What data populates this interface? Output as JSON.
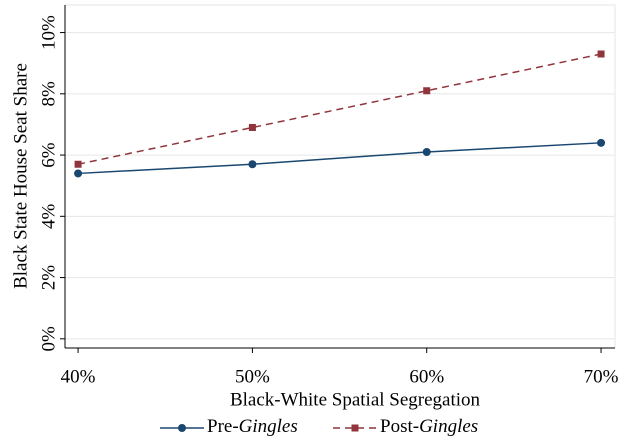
{
  "chart_data": {
    "type": "line",
    "x_label": "Black-White Spatial Segregation",
    "y_label": "Black State House Seat Share",
    "x": [
      40,
      50,
      60,
      70
    ],
    "series": [
      {
        "name": "Pre-Gingles",
        "color": "#1a476f",
        "dash": false,
        "marker": "circle",
        "values": [
          5.4,
          5.7,
          6.1,
          6.4
        ]
      },
      {
        "name": "Post-Gingles",
        "color": "#90353b",
        "dash": true,
        "marker": "square",
        "values": [
          5.7,
          6.9,
          8.1,
          9.3
        ]
      }
    ],
    "xlim": [
      39.25,
      70.8
    ],
    "ylim": [
      -0.3,
      10.9
    ],
    "xticks": [
      {
        "value": 40,
        "label": "40%"
      },
      {
        "value": 50,
        "label": "50%"
      },
      {
        "value": 60,
        "label": "60%"
      },
      {
        "value": 70,
        "label": "70%"
      }
    ],
    "yticks": [
      {
        "value": 0,
        "label": "0%"
      },
      {
        "value": 2,
        "label": "2%"
      },
      {
        "value": 4,
        "label": "4%"
      },
      {
        "value": 6,
        "label": "6%"
      },
      {
        "value": 8,
        "label": "8%"
      },
      {
        "value": 10,
        "label": "10%"
      }
    ],
    "grid": true,
    "legend": "bottom"
  }
}
